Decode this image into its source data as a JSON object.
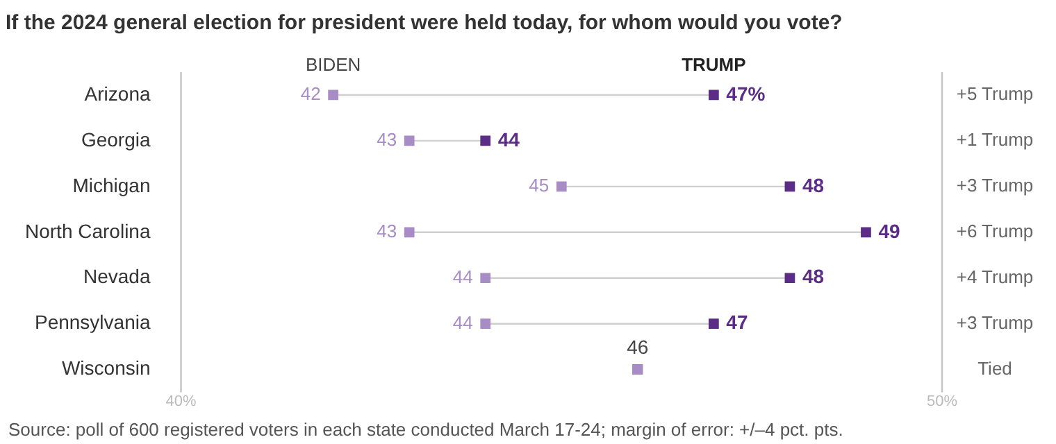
{
  "chart_data": {
    "type": "scatter",
    "orientation": "horizontal",
    "title": "If the 2024 general election for president were held today, for whom would you vote?",
    "categories": [
      "Arizona",
      "Georgia",
      "Michigan",
      "North Carolina",
      "Nevada",
      "Pennsylvania",
      "Wisconsin"
    ],
    "series": [
      {
        "name": "BIDEN",
        "color": "#a88cc6",
        "values": [
          42,
          43,
          45,
          43,
          44,
          44,
          46
        ],
        "value_labels": [
          "42",
          "43",
          "45",
          "43",
          "44",
          "44",
          null
        ]
      },
      {
        "name": "TRUMP",
        "color": "#5c2d86",
        "values": [
          47,
          44,
          48,
          49,
          48,
          47,
          46
        ],
        "value_labels": [
          "47%",
          "44",
          "48",
          "49",
          "48",
          "47",
          "46"
        ]
      }
    ],
    "xlim": [
      40,
      50
    ],
    "xticks": [
      {
        "value": 40,
        "label": "40%"
      },
      {
        "value": 50,
        "label": "50%"
      }
    ],
    "marker": "square",
    "annotations": [
      "+5 Trump",
      "+1 Trump",
      "+3 Trump",
      "+6 Trump",
      "+4 Trump",
      "+3 Trump",
      "Tied",
      "Source: poll of 600 registered voters in each state conducted March 17-24; margin of error: +/–4 pct. pts."
    ]
  }
}
